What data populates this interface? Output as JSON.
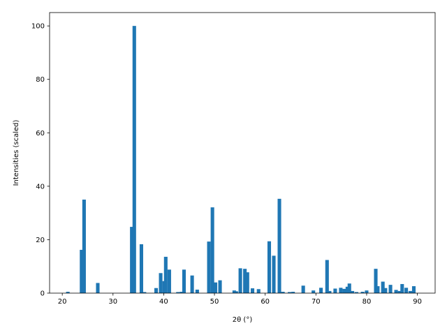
{
  "chart_data": {
    "type": "bar",
    "title": "",
    "xlabel": "2θ (°)",
    "ylabel": "Intensities (scaled)",
    "xlim": [
      17.5,
      93.5
    ],
    "ylim": [
      0,
      105
    ],
    "xticks": [
      20,
      30,
      40,
      50,
      60,
      70,
      80,
      90
    ],
    "yticks": [
      0,
      20,
      40,
      60,
      80,
      100
    ],
    "grid": false,
    "legend": "none",
    "bar_color": "#1f77b4",
    "bar_width": 0.7,
    "series": [
      {
        "x": [
          21.1,
          23.8,
          24.3,
          27.0,
          33.7,
          34.2,
          35.6,
          36.2,
          38.5,
          39.4,
          40.1,
          40.4,
          41.1,
          42.8,
          43.5,
          44.0,
          45.6,
          46.6,
          48.9,
          49.6,
          50.2,
          51.1,
          53.9,
          54.3,
          55.1,
          56.0,
          56.5,
          57.5,
          58.7,
          60.8,
          61.7,
          62.8,
          63.5,
          64.8,
          65.5,
          67.5,
          69.5,
          71.0,
          72.2,
          72.7,
          73.8,
          74.9,
          75.6,
          76.2,
          76.6,
          77.2,
          78.0,
          79.2,
          80.0,
          81.8,
          82.2,
          83.2,
          83.7,
          84.7,
          85.8,
          86.5,
          87.0,
          87.8,
          88.6,
          89.3
        ],
        "values": [
          0.5,
          16.2,
          35.0,
          3.8,
          24.8,
          100.0,
          18.3,
          0.4,
          1.9,
          7.5,
          4.5,
          13.6,
          8.8,
          0.4,
          0.5,
          8.8,
          6.6,
          1.3,
          19.3,
          32.1,
          4.0,
          4.8,
          1.0,
          0.7,
          9.3,
          9.1,
          7.8,
          1.8,
          1.5,
          19.4,
          14.0,
          35.3,
          0.5,
          0.4,
          0.5,
          2.8,
          1.0,
          2.0,
          12.4,
          0.8,
          1.7,
          2.0,
          1.6,
          2.4,
          3.6,
          0.8,
          0.4,
          0.5,
          1.0,
          9.1,
          2.6,
          4.3,
          1.9,
          3.1,
          1.2,
          0.8,
          3.4,
          2.0,
          0.8,
          2.6
        ]
      }
    ]
  }
}
